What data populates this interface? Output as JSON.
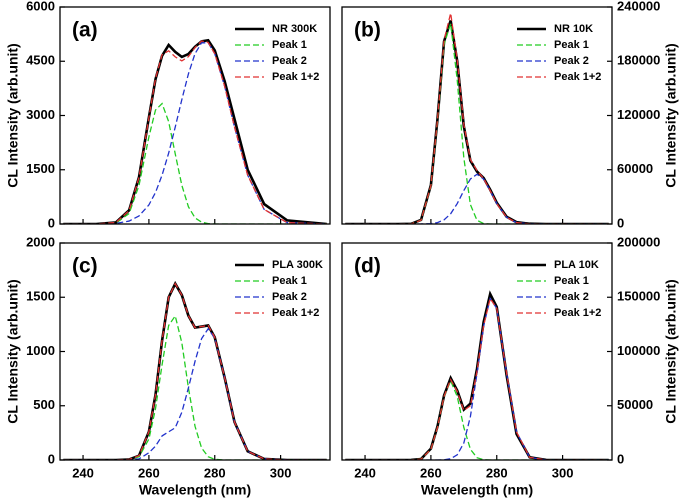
{
  "chart_data": [
    {
      "type": "line",
      "label": "(a)",
      "ylabel": "CL Intensity (arb.unit)",
      "yaxis_position": "left",
      "legend": "upper right",
      "x": [
        234,
        244,
        250,
        254,
        257,
        260,
        262,
        264,
        266,
        268,
        270,
        272,
        274,
        276,
        278,
        280,
        283,
        286,
        290,
        295,
        302,
        314
      ],
      "series": [
        {
          "name": "NR 300K",
          "color": "#000000",
          "style": "solid",
          "values": [
            0,
            0,
            45,
            380,
            1300,
            2950,
            4000,
            4650,
            4950,
            4760,
            4620,
            4700,
            4900,
            5050,
            5080,
            4800,
            3950,
            2900,
            1500,
            550,
            100,
            0
          ]
        },
        {
          "name": "Peak 1",
          "color": "#22cc22",
          "style": "dashed",
          "values": [
            0,
            0,
            25,
            292,
            1070,
            2410,
            3150,
            3330,
            2830,
            1940,
            1070,
            477,
            170,
            50,
            11,
            0,
            0,
            0,
            0,
            0,
            0,
            0
          ]
        },
        {
          "name": "Peak 2",
          "color": "#2233cc",
          "style": "dashed",
          "values": [
            0,
            0,
            17,
            81,
            222,
            529,
            870,
            1350,
            1960,
            2680,
            3440,
            4150,
            4710,
            5010,
            5010,
            4710,
            3810,
            2680,
            1350,
            403,
            38,
            0
          ]
        },
        {
          "name": "Peak 1+2",
          "color": "#e03030",
          "style": "dashed",
          "values": [
            0,
            0,
            42,
            373,
            1292,
            2939,
            4020,
            4680,
            4790,
            4620,
            4510,
            4627,
            4880,
            5060,
            5021,
            4710,
            3810,
            2680,
            1350,
            403,
            38,
            0
          ]
        }
      ],
      "xlim": [
        233,
        315
      ],
      "xticks": [
        240,
        260,
        280,
        300
      ],
      "ylim": [
        0,
        6000
      ],
      "yticks": [
        0,
        1500,
        3000,
        4500,
        6000
      ]
    },
    {
      "type": "line",
      "label": "(b)",
      "ylabel": "CL Intensity (arb.unit)",
      "yaxis_position": "right",
      "legend": "upper right",
      "x": [
        234,
        244,
        250,
        254,
        257,
        260,
        262,
        264,
        266,
        268,
        270,
        272,
        274,
        276,
        278,
        280,
        283,
        286,
        290,
        295,
        302,
        314
      ],
      "series": [
        {
          "name": "NR 10K",
          "color": "#000000",
          "style": "solid",
          "values": [
            0,
            0,
            0,
            200,
            4500,
            43000,
            116000,
            202000,
            225000,
            180000,
            108000,
            70000,
            58000,
            51000,
            38000,
            23500,
            8000,
            2000,
            300,
            0,
            0,
            0
          ]
        },
        {
          "name": "Peak 1",
          "color": "#22cc22",
          "style": "dashed",
          "values": [
            0,
            0,
            0,
            150,
            4100,
            41900,
            114000,
            198500,
            221900,
            159000,
            73100,
            21400,
            4100,
            500,
            0,
            0,
            0,
            0,
            0,
            0,
            0,
            0
          ]
        },
        {
          "name": "Peak 2",
          "color": "#2233cc",
          "style": "dashed",
          "values": [
            0,
            0,
            0,
            0,
            45,
            435,
            1570,
            4650,
            11300,
            22600,
            37000,
            49800,
            55000,
            49800,
            37000,
            22600,
            7400,
            1570,
            100,
            0,
            0,
            0
          ]
        },
        {
          "name": "Peak 1+2",
          "color": "#e03030",
          "style": "dashed",
          "values": [
            0,
            0,
            0,
            150,
            4145,
            42335,
            115570,
            203150,
            233200,
            181600,
            110100,
            71200,
            59100,
            50300,
            37000,
            22600,
            7400,
            1570,
            100,
            0,
            0,
            0
          ]
        }
      ],
      "xlim": [
        233,
        315
      ],
      "xticks": [
        240,
        260,
        280,
        300
      ],
      "ylim": [
        0,
        240000
      ],
      "yticks": [
        0,
        60000,
        120000,
        180000,
        240000
      ]
    },
    {
      "type": "line",
      "label": "(c)",
      "ylabel": "CL Intensity (arb.unit)",
      "xlabel": "Wavelength (nm)",
      "yaxis_position": "left",
      "legend": "upper right",
      "x": [
        234,
        244,
        250,
        254,
        257,
        260,
        262,
        264,
        266,
        268,
        270,
        272,
        274,
        276,
        278,
        280,
        283,
        286,
        290,
        295,
        302,
        314
      ],
      "series": [
        {
          "name": "PLA 300K",
          "color": "#000000",
          "style": "solid",
          "values": [
            0,
            0,
            0,
            5,
            40,
            260,
            600,
            1100,
            1500,
            1625,
            1520,
            1330,
            1220,
            1230,
            1240,
            1130,
            760,
            350,
            80,
            10,
            0,
            0
          ]
        },
        {
          "name": "Peak 1",
          "color": "#22cc22",
          "style": "dashed",
          "values": [
            0,
            0,
            0,
            2,
            30,
            193,
            472,
            878,
            1240,
            1328,
            1080,
            666,
            312,
            111,
            30,
            6,
            0,
            0,
            0,
            0,
            0,
            0
          ]
        },
        {
          "name": "Peak 2",
          "color": "#2233cc",
          "style": "dashed",
          "values": [
            0,
            0,
            0,
            3,
            10,
            67,
            128,
            222,
            260,
            297,
            440,
            664,
            908,
            1119,
            1210,
            1124,
            760,
            350,
            80,
            10,
            0,
            0
          ]
        },
        {
          "name": "Peak 1+2",
          "color": "#e03030",
          "style": "dashed",
          "values": [
            0,
            0,
            0,
            5,
            40,
            260,
            600,
            1100,
            1500,
            1625,
            1520,
            1330,
            1220,
            1230,
            1240,
            1130,
            760,
            350,
            80,
            10,
            0,
            0
          ]
        }
      ],
      "xlim": [
        233,
        315
      ],
      "xticks": [
        240,
        260,
        280,
        300
      ],
      "ylim": [
        0,
        2000
      ],
      "yticks": [
        0,
        500,
        1000,
        1500,
        2000
      ]
    },
    {
      "type": "line",
      "label": "(d)",
      "ylabel": "CL Intensity (arb.unit)",
      "xlabel": "Wavelength (nm)",
      "yaxis_position": "right",
      "legend": "upper right",
      "x": [
        234,
        244,
        250,
        254,
        257,
        260,
        262,
        264,
        266,
        268,
        270,
        272,
        274,
        276,
        278,
        280,
        283,
        286,
        290,
        295,
        302,
        314
      ],
      "series": [
        {
          "name": "PLA 10K",
          "color": "#000000",
          "style": "solid",
          "values": [
            0,
            0,
            0,
            30,
            900,
            10500,
            31000,
            59500,
            75500,
            64000,
            46500,
            52000,
            84000,
            127000,
            153000,
            141000,
            78000,
            24000,
            2500,
            100,
            0,
            0
          ]
        },
        {
          "name": "Peak 1",
          "color": "#22cc22",
          "style": "dashed",
          "values": [
            0,
            0,
            0,
            20,
            810,
            9900,
            30000,
            58500,
            73000,
            58500,
            30000,
            9900,
            2080,
            280,
            25,
            0,
            0,
            0,
            0,
            0,
            0,
            0
          ]
        },
        {
          "name": "Peak 2",
          "color": "#2233cc",
          "style": "dashed",
          "values": [
            0,
            0,
            0,
            0,
            0,
            0,
            0,
            210,
            1140,
            4770,
            15700,
            40100,
            79700,
            123400,
            148800,
            139800,
            79700,
            25800,
            2400,
            0,
            0,
            0
          ]
        },
        {
          "name": "Peak 1+2",
          "color": "#e03030",
          "style": "dashed",
          "values": [
            0,
            0,
            0,
            20,
            810,
            9900,
            30000,
            58710,
            74140,
            63270,
            45700,
            50000,
            81780,
            123680,
            148825,
            139800,
            79700,
            25800,
            2400,
            0,
            0,
            0
          ]
        }
      ],
      "xlim": [
        233,
        315
      ],
      "xticks": [
        240,
        260,
        280,
        300
      ],
      "ylim": [
        0,
        200000
      ],
      "yticks": [
        0,
        50000,
        100000,
        150000,
        200000
      ]
    }
  ]
}
